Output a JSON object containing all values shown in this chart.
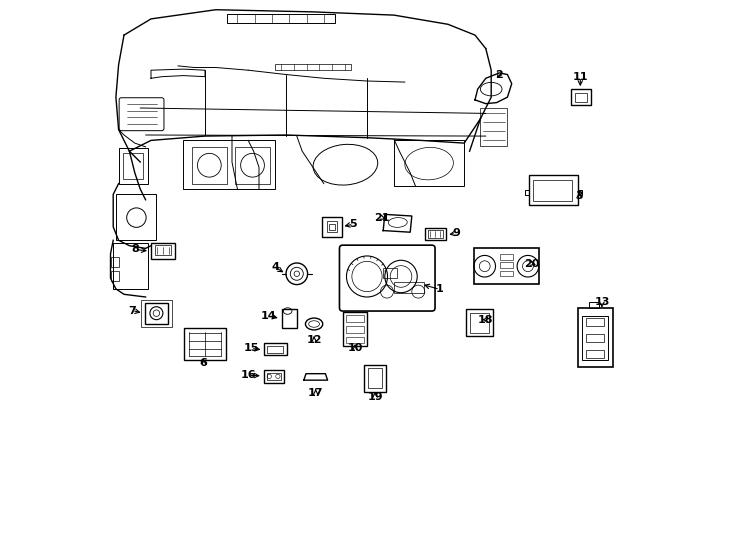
{
  "background_color": "#ffffff",
  "line_color": "#000000",
  "figure_width": 7.34,
  "figure_height": 5.4,
  "dpi": 100,
  "part_labels": {
    "1": [
      0.635,
      0.464,
      0.6,
      0.474
    ],
    "2": [
      0.745,
      0.862,
      0.738,
      0.85
    ],
    "3": [
      0.893,
      0.637,
      0.893,
      0.65
    ],
    "4": [
      0.33,
      0.505,
      0.35,
      0.493
    ],
    "5": [
      0.475,
      0.585,
      0.453,
      0.58
    ],
    "6": [
      0.197,
      0.328,
      0.197,
      0.342
    ],
    "7": [
      0.065,
      0.425,
      0.086,
      0.42
    ],
    "8": [
      0.07,
      0.538,
      0.098,
      0.535
    ],
    "9": [
      0.665,
      0.568,
      0.647,
      0.565
    ],
    "10": [
      0.478,
      0.355,
      0.478,
      0.368
    ],
    "11": [
      0.895,
      0.858,
      0.895,
      0.835
    ],
    "12": [
      0.402,
      0.37,
      0.402,
      0.383
    ],
    "13": [
      0.935,
      0.44,
      0.935,
      0.43
    ],
    "14": [
      0.318,
      0.415,
      0.34,
      0.41
    ],
    "15": [
      0.285,
      0.355,
      0.308,
      0.352
    ],
    "16": [
      0.28,
      0.305,
      0.307,
      0.304
    ],
    "17": [
      0.405,
      0.272,
      0.405,
      0.285
    ],
    "18": [
      0.72,
      0.408,
      0.708,
      0.408
    ],
    "19": [
      0.515,
      0.265,
      0.515,
      0.28
    ],
    "20": [
      0.805,
      0.512,
      0.818,
      0.508
    ],
    "21": [
      0.527,
      0.597,
      0.54,
      0.592
    ]
  }
}
